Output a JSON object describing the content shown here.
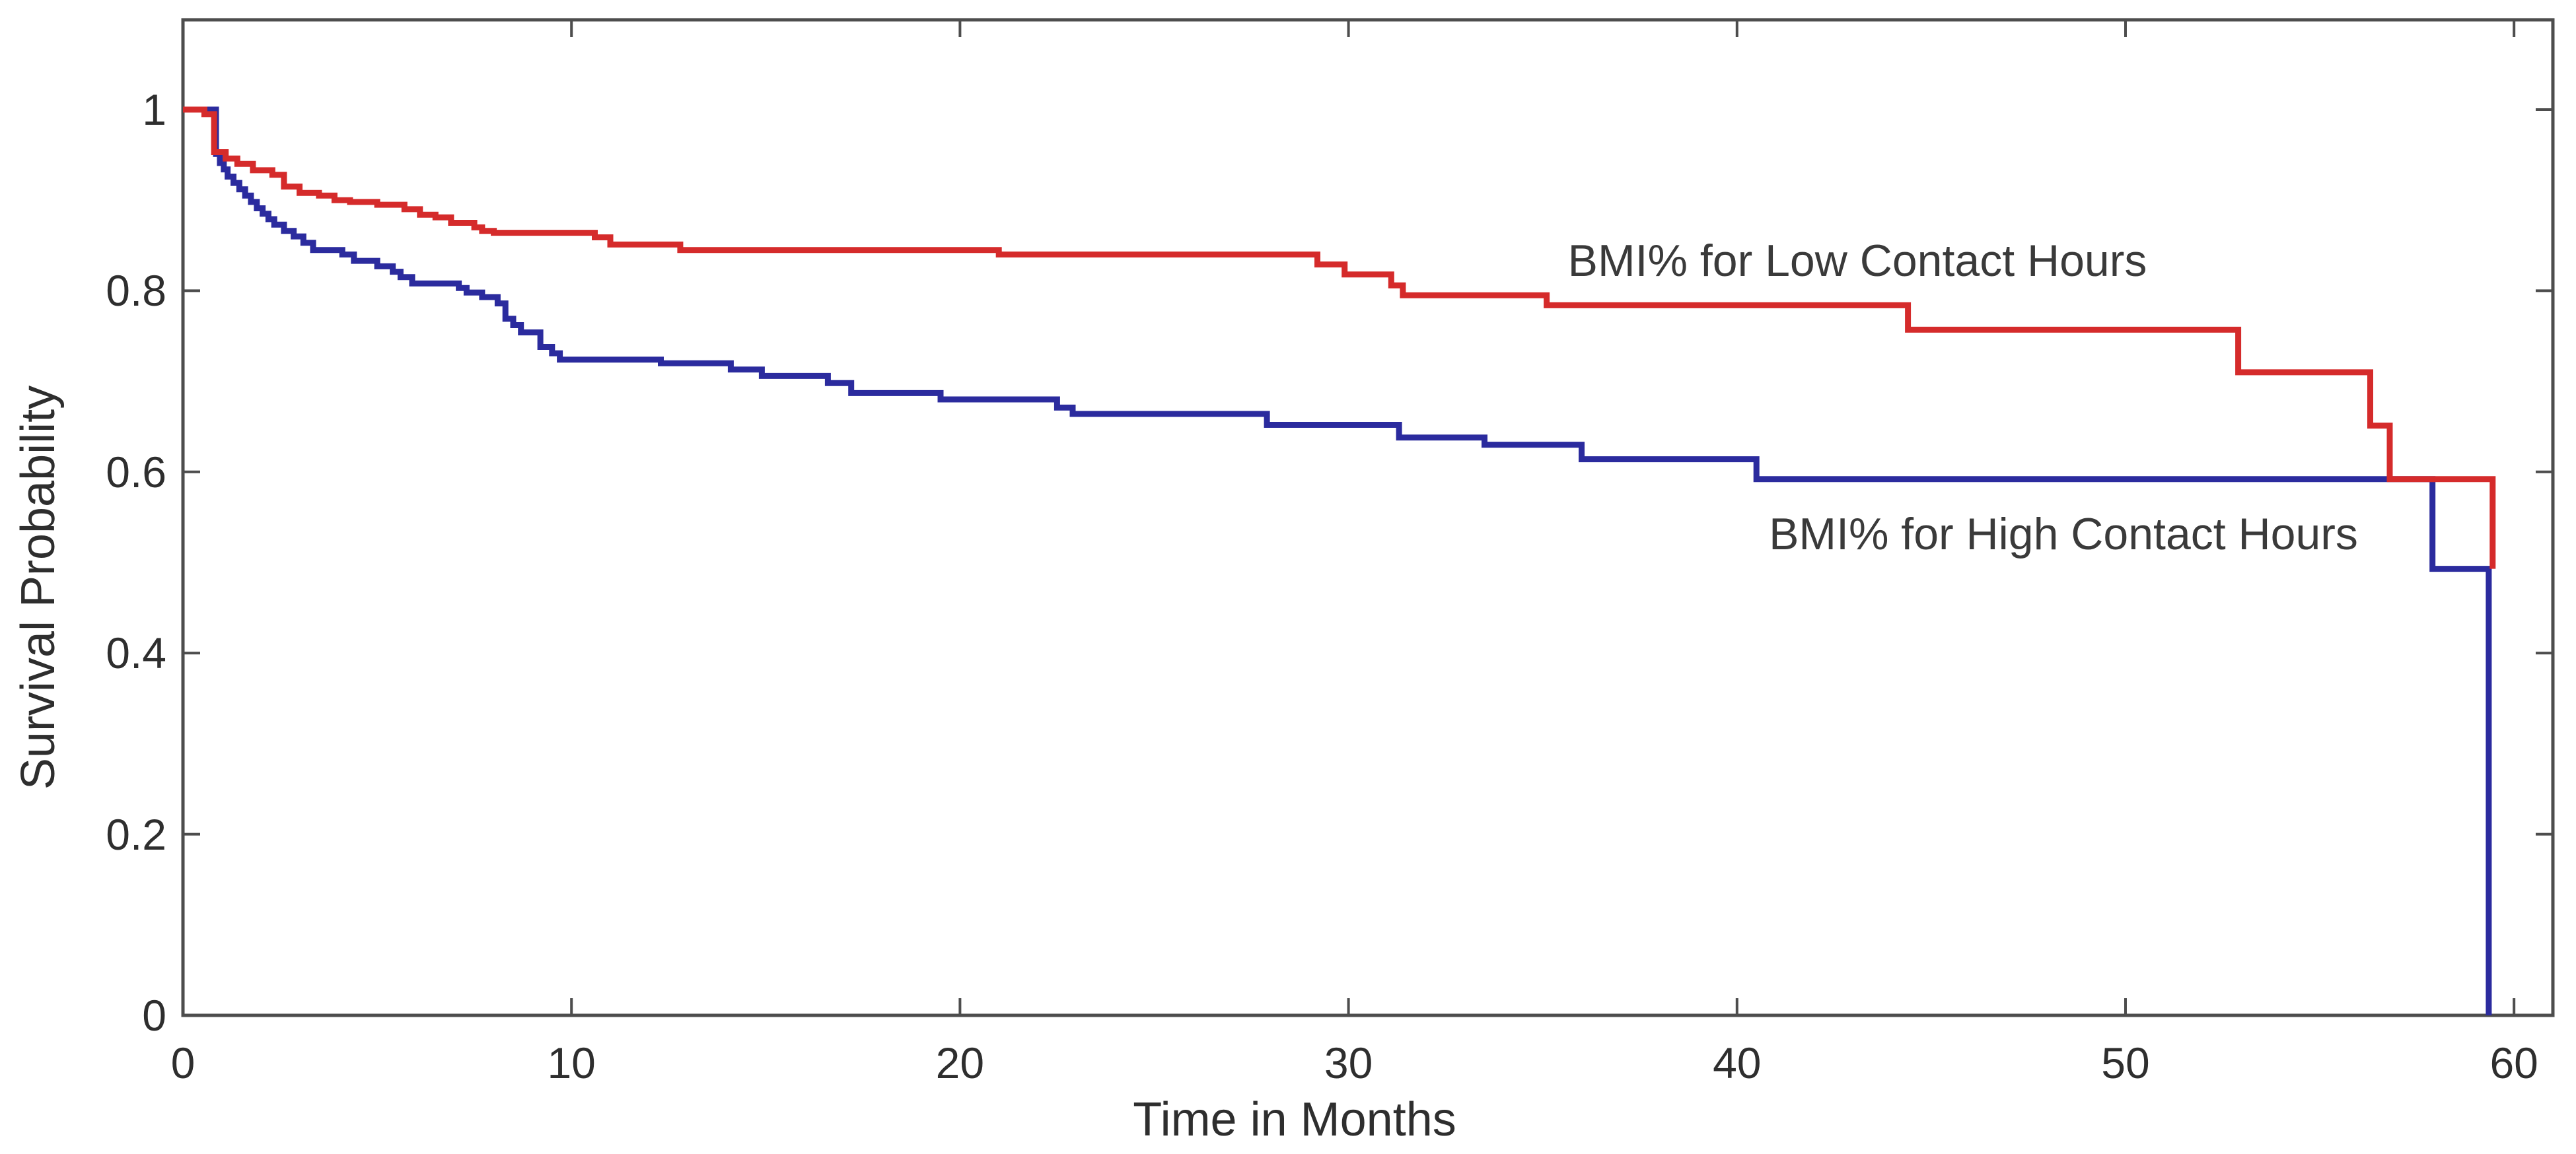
{
  "chart_data": {
    "type": "line",
    "subtype": "kaplan-meier-step-survival",
    "title": "",
    "xlabel": "Time in Months",
    "ylabel": "Survival Probability",
    "xlim": [
      0,
      61
    ],
    "ylim": [
      0,
      1.099
    ],
    "grid": false,
    "legend_position": "inline-annotations",
    "frame_color": "#4d4d4d",
    "x_ticks": [
      0,
      10,
      20,
      30,
      40,
      50,
      60
    ],
    "y_ticks": [
      0,
      0.2,
      0.4,
      0.6,
      0.8,
      1
    ],
    "x_tick_labels": [
      "0",
      "10",
      "20",
      "30",
      "40",
      "50",
      "60"
    ],
    "y_tick_labels": [
      "0",
      "0.2",
      "0.4",
      "0.6",
      "0.8",
      "1"
    ],
    "series": [
      {
        "name": "BMI% for High Contact Hours",
        "color": "#2b2b9e",
        "steps": [
          [
            0,
            1.0
          ],
          [
            0.85,
            0.951
          ],
          [
            0.95,
            0.941
          ],
          [
            1.05,
            0.934
          ],
          [
            1.15,
            0.926
          ],
          [
            1.3,
            0.919
          ],
          [
            1.45,
            0.912
          ],
          [
            1.6,
            0.905
          ],
          [
            1.75,
            0.898
          ],
          [
            1.9,
            0.891
          ],
          [
            2.05,
            0.885
          ],
          [
            2.2,
            0.879
          ],
          [
            2.35,
            0.873
          ],
          [
            2.6,
            0.866
          ],
          [
            2.85,
            0.86
          ],
          [
            3.1,
            0.853
          ],
          [
            3.35,
            0.845
          ],
          [
            4.1,
            0.84
          ],
          [
            4.4,
            0.833
          ],
          [
            5.0,
            0.827
          ],
          [
            5.4,
            0.821
          ],
          [
            5.6,
            0.815
          ],
          [
            5.9,
            0.808
          ],
          [
            7.1,
            0.803
          ],
          [
            7.3,
            0.798
          ],
          [
            7.7,
            0.793
          ],
          [
            8.1,
            0.786
          ],
          [
            8.3,
            0.769
          ],
          [
            8.5,
            0.762
          ],
          [
            8.7,
            0.754
          ],
          [
            9.2,
            0.738
          ],
          [
            9.5,
            0.731
          ],
          [
            9.7,
            0.724
          ],
          [
            12.3,
            0.72
          ],
          [
            14.1,
            0.713
          ],
          [
            14.9,
            0.706
          ],
          [
            16.6,
            0.698
          ],
          [
            17.2,
            0.687
          ],
          [
            19.5,
            0.68
          ],
          [
            22.5,
            0.671
          ],
          [
            22.9,
            0.664
          ],
          [
            27.9,
            0.652
          ],
          [
            31.3,
            0.638
          ],
          [
            33.5,
            0.63
          ],
          [
            36.0,
            0.614
          ],
          [
            40.5,
            0.592
          ],
          [
            57.9,
            0.493
          ],
          [
            59.35,
            0.0
          ]
        ]
      },
      {
        "name": "BMI% for Low Contact Hours",
        "color": "#d52b2b",
        "steps": [
          [
            0,
            1.0
          ],
          [
            0.55,
            0.995
          ],
          [
            0.8,
            0.953
          ],
          [
            1.1,
            0.946
          ],
          [
            1.4,
            0.94
          ],
          [
            1.8,
            0.933
          ],
          [
            2.3,
            0.928
          ],
          [
            2.6,
            0.915
          ],
          [
            3.0,
            0.908
          ],
          [
            3.5,
            0.905
          ],
          [
            3.9,
            0.9
          ],
          [
            4.3,
            0.898
          ],
          [
            5.0,
            0.895
          ],
          [
            5.7,
            0.89
          ],
          [
            6.1,
            0.884
          ],
          [
            6.5,
            0.881
          ],
          [
            6.9,
            0.875
          ],
          [
            7.5,
            0.87
          ],
          [
            7.7,
            0.866
          ],
          [
            8.0,
            0.864
          ],
          [
            10.6,
            0.859
          ],
          [
            11.0,
            0.851
          ],
          [
            12.8,
            0.845
          ],
          [
            21.0,
            0.84
          ],
          [
            29.2,
            0.829
          ],
          [
            29.9,
            0.818
          ],
          [
            31.1,
            0.806
          ],
          [
            31.4,
            0.795
          ],
          [
            35.1,
            0.784
          ],
          [
            44.4,
            0.757
          ],
          [
            52.9,
            0.71
          ],
          [
            56.3,
            0.651
          ],
          [
            56.8,
            0.592
          ],
          [
            59.45,
            0.493
          ]
        ]
      }
    ],
    "annotations": [
      {
        "text": "BMI% for Low Contact Hours",
        "x": 43.1,
        "y": 0.833,
        "color": "#3a3a3a"
      },
      {
        "text": "BMI% for High Contact Hours",
        "x": 48.4,
        "y": 0.531,
        "color": "#3a3a3a"
      }
    ]
  },
  "axis_titles": {
    "x": "Time in Months",
    "y": "Survival Probability"
  }
}
